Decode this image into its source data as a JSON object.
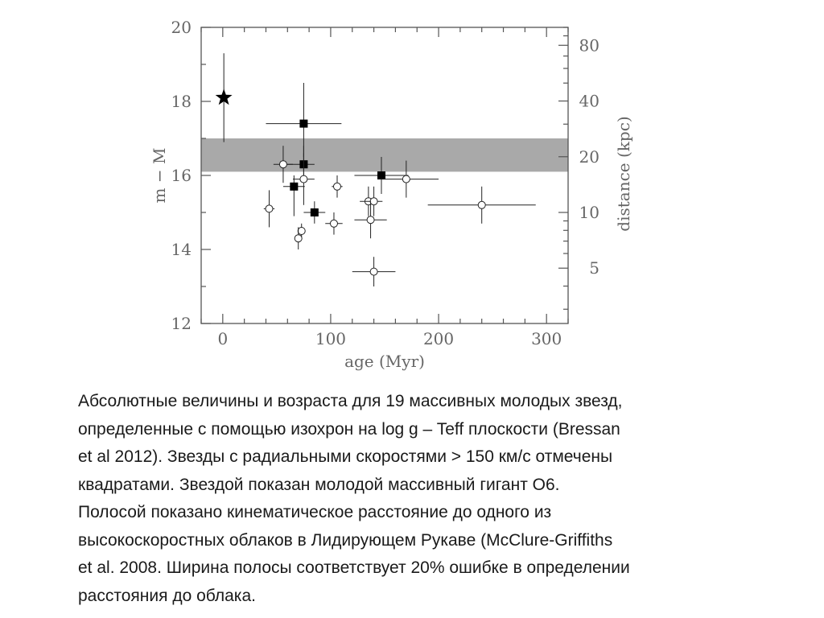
{
  "chart_data": {
    "type": "scatter",
    "xlabel": "age  (Myr)",
    "ylabel": "m − M",
    "y2label": "distance  (kpc)",
    "xlim": [
      -20,
      320
    ],
    "ylim": [
      12,
      20
    ],
    "xticks": [
      0,
      100,
      200,
      300
    ],
    "yticks": [
      12,
      14,
      16,
      18,
      20
    ],
    "y2ticks": [
      5,
      10,
      20,
      40,
      80
    ],
    "y2_scale": "log distance, m-M = 5 log10(d/10pc)",
    "band": {
      "y_min": 16.1,
      "y_max": 17.0,
      "color": "#a9a9a9"
    },
    "series": [
      {
        "marker": "star",
        "points": [
          {
            "x": 1,
            "y": 18.1,
            "xerr": 0,
            "yerr_lo": 1.2,
            "yerr_hi": 1.2
          }
        ]
      },
      {
        "marker": "filled-square",
        "points": [
          {
            "x": 75,
            "y": 17.4,
            "xerr_lo": 35,
            "xerr_hi": 35,
            "yerr_lo": 0.9,
            "yerr_hi": 1.1
          },
          {
            "x": 75,
            "y": 16.3,
            "xerr_lo": 15,
            "xerr_hi": 10,
            "yerr_lo": 0.5,
            "yerr_hi": 0.5
          },
          {
            "x": 66,
            "y": 15.7,
            "xerr_lo": 10,
            "xerr_hi": 10,
            "yerr_lo": 0.8,
            "yerr_hi": 0.3
          },
          {
            "x": 85,
            "y": 15.0,
            "xerr_lo": 10,
            "xerr_hi": 10,
            "yerr_lo": 0.3,
            "yerr_hi": 0.3
          },
          {
            "x": 147,
            "y": 16.0,
            "xerr_lo": 25,
            "xerr_hi": 25,
            "yerr_lo": 0.5,
            "yerr_hi": 0.5
          }
        ]
      },
      {
        "marker": "open-circle",
        "points": [
          {
            "x": 56,
            "y": 16.3,
            "xerr_lo": 9,
            "xerr_hi": 9,
            "yerr_lo": 0.5,
            "yerr_hi": 0.5
          },
          {
            "x": 75,
            "y": 15.9,
            "xerr_lo": 10,
            "xerr_hi": 10,
            "yerr_lo": 0.7,
            "yerr_hi": 0.7
          },
          {
            "x": 43,
            "y": 15.1,
            "xerr_lo": 5,
            "xerr_hi": 5,
            "yerr_lo": 0.5,
            "yerr_hi": 0.5
          },
          {
            "x": 106,
            "y": 15.7,
            "xerr_lo": 5,
            "xerr_hi": 5,
            "yerr_lo": 0.3,
            "yerr_hi": 0.3
          },
          {
            "x": 135,
            "y": 15.3,
            "xerr_lo": 8,
            "xerr_hi": 8,
            "yerr_lo": 0.4,
            "yerr_hi": 0.4
          },
          {
            "x": 140,
            "y": 15.3,
            "xerr_lo": 8,
            "xerr_hi": 8,
            "yerr_lo": 0.4,
            "yerr_hi": 0.4
          },
          {
            "x": 137,
            "y": 14.8,
            "xerr_lo": 15,
            "xerr_hi": 15,
            "yerr_lo": 0.5,
            "yerr_hi": 0.5
          },
          {
            "x": 103,
            "y": 14.7,
            "xerr_lo": 8,
            "xerr_hi": 8,
            "yerr_lo": 0.3,
            "yerr_hi": 0.3
          },
          {
            "x": 73,
            "y": 14.5,
            "xerr_lo": 3,
            "xerr_hi": 3,
            "yerr_lo": 0.2,
            "yerr_hi": 0.2
          },
          {
            "x": 70,
            "y": 14.3,
            "xerr_lo": 3,
            "xerr_hi": 3,
            "yerr_lo": 0.3,
            "yerr_hi": 0.3
          },
          {
            "x": 140,
            "y": 13.4,
            "xerr_lo": 20,
            "xerr_hi": 20,
            "yerr_lo": 0.4,
            "yerr_hi": 0.4
          },
          {
            "x": 170,
            "y": 15.9,
            "xerr_lo": 25,
            "xerr_hi": 30,
            "yerr_lo": 0.5,
            "yerr_hi": 0.5
          },
          {
            "x": 240,
            "y": 15.2,
            "xerr_lo": 50,
            "xerr_hi": 50,
            "yerr_lo": 0.5,
            "yerr_hi": 0.5
          }
        ]
      }
    ]
  },
  "caption": [
    " Абсолютные величины и возраста для 19 массивных молодых звезд,",
    "определенные с помощью изохрон  на log g – Teff плоскости  (Bressan",
    "et al 2012). Звезды с радиальными скоростями > 150 км/с  отмечены",
    "квадратами. Звездой показан молодой массивный гигант O6.",
    "Полосой показано кинематическое расстояние до одного из",
    "высокоскоростных облаков в Лидирующем Рукаве (McClure-Griffiths",
    "et al. 2008.  Ширина полосы соответствует 20% ошибке в определении",
    "расстояния до облака."
  ]
}
